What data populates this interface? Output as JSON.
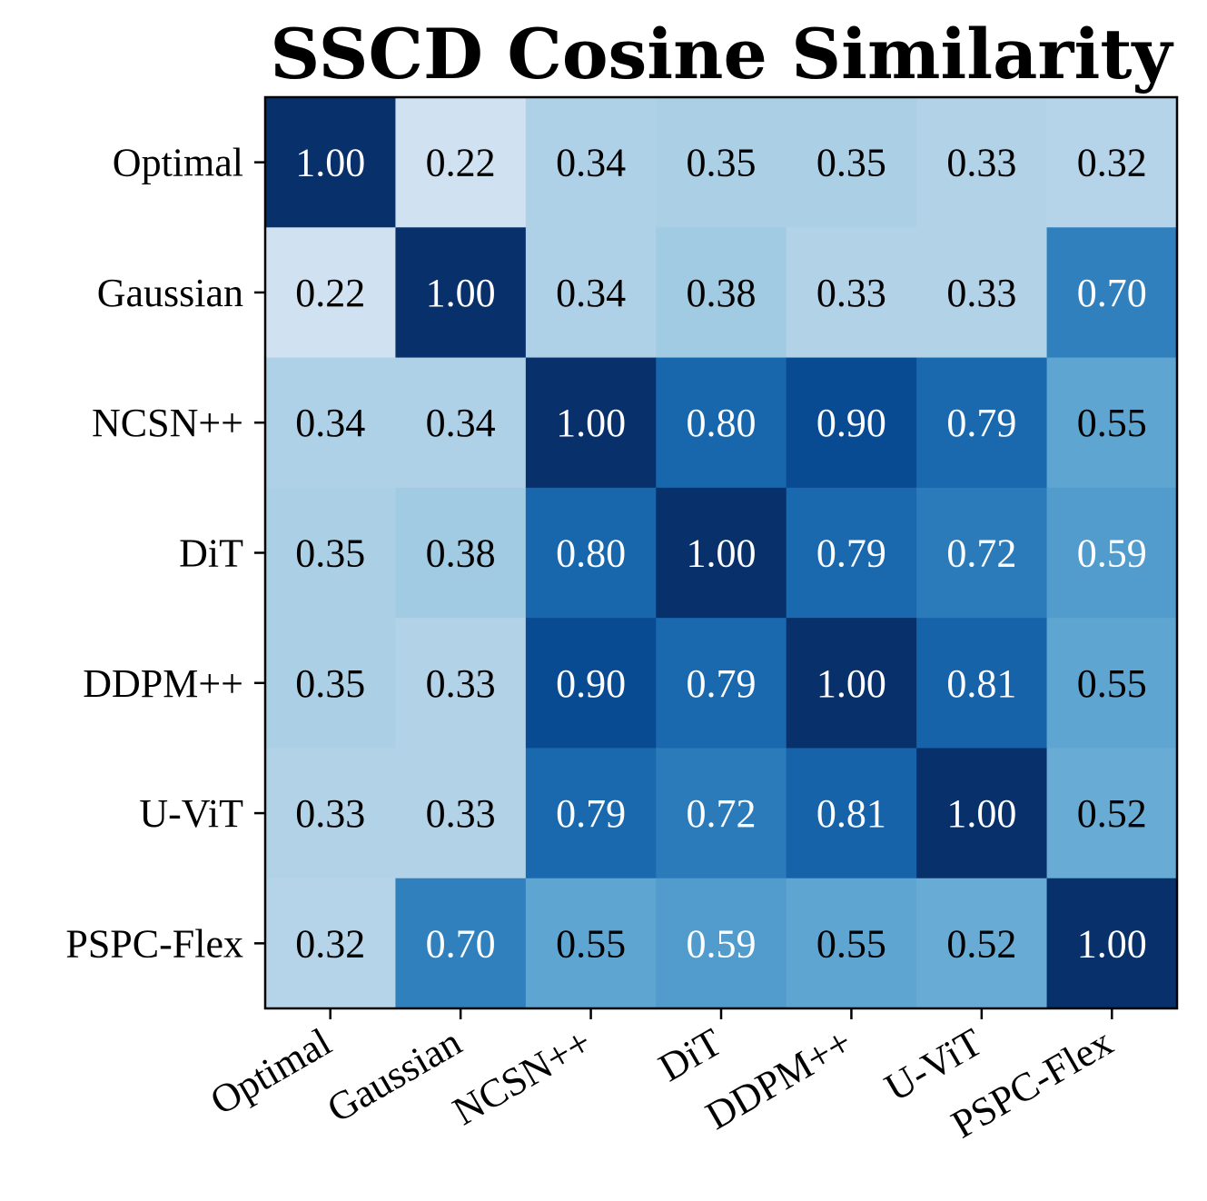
{
  "chart_data": {
    "type": "heatmap",
    "title": "SSCD Cosine Similarity",
    "x_labels": [
      "Optimal",
      "Gaussian",
      "NCSN++",
      "DiT",
      "DDPM++",
      "U-ViT",
      "PSPC-Flex"
    ],
    "y_labels": [
      "Optimal",
      "Gaussian",
      "NCSN++",
      "DiT",
      "DDPM++",
      "U-ViT",
      "PSPC-Flex"
    ],
    "values": [
      [
        1.0,
        0.22,
        0.34,
        0.35,
        0.35,
        0.33,
        0.32
      ],
      [
        0.22,
        1.0,
        0.34,
        0.38,
        0.33,
        0.33,
        0.7
      ],
      [
        0.34,
        0.34,
        1.0,
        0.8,
        0.9,
        0.79,
        0.55
      ],
      [
        0.35,
        0.38,
        0.8,
        1.0,
        0.79,
        0.72,
        0.59
      ],
      [
        0.35,
        0.33,
        0.9,
        0.79,
        1.0,
        0.81,
        0.55
      ],
      [
        0.33,
        0.33,
        0.79,
        0.72,
        0.81,
        1.0,
        0.52
      ],
      [
        0.32,
        0.7,
        0.55,
        0.59,
        0.55,
        0.52,
        1.0
      ]
    ],
    "value_format": "0.00",
    "colormap": "Blues",
    "color_range": [
      0.22,
      1.0
    ],
    "colorbar": false,
    "xlabel": "",
    "ylabel": "",
    "text_colors": {
      "dark": "#000000",
      "light": "#ffffff"
    }
  }
}
